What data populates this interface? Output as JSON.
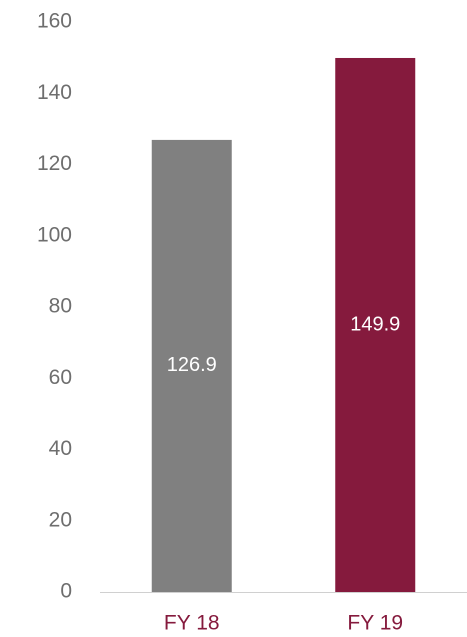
{
  "chart_data": {
    "type": "bar",
    "title": "",
    "xlabel": "",
    "ylabel": "",
    "categories": [
      "FY 18",
      "FY 19"
    ],
    "values": [
      126.9,
      149.9
    ],
    "data_labels": [
      "126.9",
      "149.9"
    ],
    "bar_colors": [
      "#808080",
      "#851a3d"
    ],
    "category_label_color": "#851a3d",
    "ylim": [
      0,
      160
    ],
    "yticks": [
      0,
      20,
      40,
      60,
      80,
      100,
      120,
      140,
      160
    ],
    "grid": false,
    "legend": "none"
  }
}
